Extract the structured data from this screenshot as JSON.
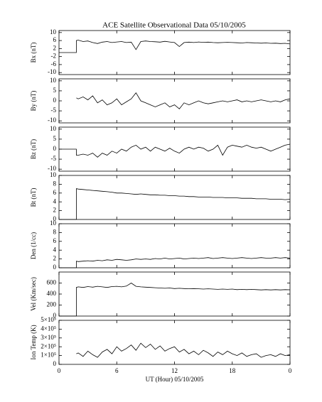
{
  "chart_data": [
    {
      "type": "line",
      "title": "ACE Satellite Observational Data  05/10/2005",
      "ylabel": "Bx (nT)",
      "color": "#000000",
      "ylim": [
        -11,
        11
      ],
      "yticks": [
        -10,
        -6,
        -2,
        2,
        6,
        10
      ],
      "x": [
        0,
        1.8,
        1.8,
        2,
        2.5,
        3,
        3.5,
        4,
        4.5,
        5,
        5.5,
        6,
        6.5,
        7,
        7.5,
        8,
        8.5,
        9,
        9.5,
        10,
        10.5,
        11,
        11.5,
        12,
        12.5,
        13,
        13.5,
        14,
        14.5,
        15,
        15.5,
        16,
        16.5,
        17,
        17.5,
        18,
        18.5,
        19,
        19.5,
        20,
        20.5,
        21,
        21.5,
        22,
        22.5,
        23,
        23.5,
        24
      ],
      "values": [
        0,
        0,
        6,
        6.2,
        5.5,
        5.8,
        5,
        4.5,
        5.2,
        5.5,
        5,
        5.3,
        5.5,
        5,
        5.2,
        1.5,
        5.5,
        5.8,
        5.5,
        5.4,
        5.2,
        5.6,
        5.3,
        5,
        3,
        5,
        5.2,
        5,
        5.3,
        5.1,
        5.2,
        5,
        4.9,
        5,
        5.1,
        5,
        4.9,
        4.8,
        5,
        4.9,
        4.8,
        4.7,
        4.8,
        4.6,
        4.7,
        4.5,
        4.6,
        4.3
      ]
    },
    {
      "type": "line",
      "ylabel": "By (nT)",
      "color": "#000000",
      "ylim": [
        -11,
        11
      ],
      "yticks": [
        -10,
        -5,
        0,
        5,
        10
      ],
      "x": [
        0,
        1.8,
        1.8,
        2,
        2.5,
        3,
        3.5,
        4,
        4.5,
        5,
        5.5,
        6,
        6.5,
        7,
        7.5,
        8,
        8.5,
        9,
        9.5,
        10,
        10.5,
        11,
        11.5,
        12,
        12.5,
        13,
        13.5,
        14,
        14.5,
        15,
        15.5,
        16,
        16.5,
        17,
        17.5,
        18,
        18.5,
        19,
        19.5,
        20,
        20.5,
        21,
        21.5,
        22,
        22.5,
        23,
        23.5,
        24
      ],
      "values": [
        null,
        null,
        1.5,
        1,
        2,
        0.5,
        2.5,
        -1,
        0.5,
        -2,
        -1,
        1,
        -2,
        -0.5,
        1,
        4,
        0,
        -1,
        -2,
        -3,
        -2,
        -1,
        -3,
        -2,
        -4,
        -1,
        -2,
        -1,
        0,
        -1,
        -1.5,
        -1,
        -0.5,
        0,
        -0.5,
        0,
        0.5,
        -0.5,
        0,
        -0.5,
        0,
        0.5,
        0,
        -0.5,
        0,
        -0.5,
        0.5,
        1
      ]
    },
    {
      "type": "line",
      "ylabel": "Bz (nT)",
      "color": "#000000",
      "ylim": [
        -11,
        11
      ],
      "yticks": [
        -10,
        -5,
        0,
        5,
        10
      ],
      "x": [
        0,
        1.8,
        1.8,
        2,
        2.5,
        3,
        3.5,
        4,
        4.5,
        5,
        5.5,
        6,
        6.5,
        7,
        7.5,
        8,
        8.5,
        9,
        9.5,
        10,
        10.5,
        11,
        11.5,
        12,
        12.5,
        13,
        13.5,
        14,
        14.5,
        15,
        15.5,
        16,
        16.5,
        17,
        17.5,
        18,
        18.5,
        19,
        19.5,
        20,
        20.5,
        21,
        21.5,
        22,
        22.5,
        23,
        23.5,
        24
      ],
      "values": [
        0,
        0,
        -3,
        -3,
        -2.5,
        -3,
        -2,
        -4,
        -2,
        -3,
        -1,
        -2,
        0,
        -1,
        1,
        2,
        0,
        1,
        -1,
        1,
        0,
        -1,
        0.5,
        -1,
        -2,
        0,
        1,
        0,
        1,
        0.5,
        -1,
        0,
        2,
        -3,
        1,
        2,
        1.5,
        1,
        2,
        1,
        0.5,
        1,
        0,
        -1,
        0,
        1,
        2,
        2.5
      ]
    },
    {
      "type": "line",
      "ylabel": "Bt (nT)",
      "color": "#000000",
      "ylim": [
        0,
        10
      ],
      "yticks": [
        0,
        2,
        4,
        6,
        8,
        10
      ],
      "x": [
        0,
        1.8,
        1.8,
        2,
        2.5,
        3,
        3.5,
        4,
        4.5,
        5,
        5.5,
        6,
        6.5,
        7,
        7.5,
        8,
        8.5,
        9,
        9.5,
        10,
        10.5,
        11,
        11.5,
        12,
        12.5,
        13,
        13.5,
        14,
        14.5,
        15,
        15.5,
        16,
        16.5,
        17,
        17.5,
        18,
        18.5,
        19,
        19.5,
        20,
        20.5,
        21,
        21.5,
        22,
        22.5,
        23,
        23.5,
        24
      ],
      "values": [
        0,
        0,
        7,
        6.9,
        6.8,
        6.7,
        6.6,
        6.5,
        6.4,
        6.3,
        6.2,
        6,
        6,
        5.9,
        5.8,
        5.7,
        5.8,
        5.7,
        5.6,
        5.6,
        5.5,
        5.5,
        5.4,
        5.4,
        5.3,
        5.3,
        5.2,
        5.2,
        5.1,
        5.1,
        5.1,
        5,
        5,
        5,
        4.9,
        4.9,
        4.9,
        4.8,
        4.8,
        4.8,
        4.7,
        4.7,
        4.7,
        4.6,
        4.6,
        4.6,
        4.5,
        4.6
      ]
    },
    {
      "type": "line",
      "ylabel": "Den (1/cc)",
      "color": "#000000",
      "ylim": [
        0,
        10
      ],
      "yticks": [
        0,
        2,
        4,
        6,
        8,
        10
      ],
      "x": [
        0,
        1.8,
        1.8,
        2,
        2.5,
        3,
        3.5,
        4,
        4.5,
        5,
        5.5,
        6,
        6.5,
        7,
        7.5,
        8,
        8.5,
        9,
        9.5,
        10,
        10.5,
        11,
        11.5,
        12,
        12.5,
        13,
        13.5,
        14,
        14.5,
        15,
        15.5,
        16,
        16.5,
        17,
        17.5,
        18,
        18.5,
        19,
        19.5,
        20,
        20.5,
        21,
        21.5,
        22,
        22.5,
        23,
        23.5,
        24
      ],
      "values": [
        0,
        0,
        1.5,
        1.4,
        1.5,
        1.6,
        1.5,
        1.7,
        1.6,
        1.8,
        1.7,
        1.9,
        1.8,
        1.7,
        1.8,
        2,
        1.9,
        2,
        1.9,
        2.1,
        2,
        2.2,
        2,
        2.1,
        2.2,
        2,
        2.1,
        2.2,
        2.1,
        2.2,
        2.3,
        2.1,
        2.2,
        2.3,
        2.2,
        2.1,
        2.2,
        2.3,
        2.2,
        2.1,
        2.2,
        2.3,
        2.2,
        2.2,
        2.3,
        2.2,
        2.3,
        2.2
      ]
    },
    {
      "type": "line",
      "ylabel": "Vel (Km/sec)",
      "color": "#000000",
      "ylim": [
        0,
        800
      ],
      "yticks": [
        0,
        200,
        400,
        600
      ],
      "x": [
        0,
        1.8,
        1.8,
        2,
        2.5,
        3,
        3.5,
        4,
        4.5,
        5,
        5.5,
        6,
        6.5,
        7,
        7.5,
        8,
        8.5,
        9,
        9.5,
        10,
        10.5,
        11,
        11.5,
        12,
        12.5,
        13,
        13.5,
        14,
        14.5,
        15,
        15.5,
        16,
        16.5,
        17,
        17.5,
        18,
        18.5,
        19,
        19.5,
        20,
        20.5,
        21,
        21.5,
        22,
        22.5,
        23,
        23.5,
        24
      ],
      "values": [
        0,
        0,
        520,
        530,
        520,
        535,
        525,
        540,
        530,
        520,
        535,
        540,
        530,
        545,
        600,
        540,
        530,
        525,
        520,
        515,
        510,
        505,
        510,
        500,
        505,
        500,
        495,
        500,
        495,
        490,
        495,
        490,
        485,
        490,
        485,
        490,
        480,
        485,
        480,
        485,
        480,
        475,
        480,
        475,
        480,
        475,
        480,
        478
      ]
    },
    {
      "type": "line",
      "ylabel": "Ion Temp (K)",
      "xlabel": "UT (Hour)  05/10/2005",
      "color": "#000000",
      "ylim": [
        0,
        500000
      ],
      "yticks": [
        0,
        {
          "value": 100000,
          "label": "1×10⁵"
        },
        {
          "value": 200000,
          "label": "2×10⁵"
        },
        {
          "value": 300000,
          "label": "3×10⁵"
        },
        {
          "value": 400000,
          "label": "4×10⁵"
        },
        {
          "value": 500000,
          "label": "5×10⁵"
        }
      ],
      "xlim": [
        0,
        24
      ],
      "xticks": [
        0,
        6,
        12,
        18,
        {
          "value": 24,
          "label": "0"
        }
      ],
      "x": [
        0,
        1.8,
        1.8,
        2,
        2.5,
        3,
        3.5,
        4,
        4.5,
        5,
        5.5,
        6,
        6.5,
        7,
        7.5,
        8,
        8.5,
        9,
        9.5,
        10,
        10.5,
        11,
        11.5,
        12,
        12.5,
        13,
        13.5,
        14,
        14.5,
        15,
        15.5,
        16,
        16.5,
        17,
        17.5,
        18,
        18.5,
        19,
        19.5,
        20,
        20.5,
        21,
        21.5,
        22,
        22.5,
        23,
        23.5,
        24
      ],
      "values": [
        null,
        null,
        120000,
        130000,
        90000,
        150000,
        110000,
        80000,
        140000,
        170000,
        120000,
        200000,
        150000,
        180000,
        220000,
        160000,
        240000,
        190000,
        230000,
        170000,
        210000,
        150000,
        180000,
        200000,
        140000,
        170000,
        120000,
        150000,
        110000,
        160000,
        130000,
        90000,
        140000,
        110000,
        150000,
        120000,
        100000,
        130000,
        90000,
        110000,
        120000,
        80000,
        100000,
        110000,
        90000,
        120000,
        100000,
        110000
      ]
    }
  ]
}
